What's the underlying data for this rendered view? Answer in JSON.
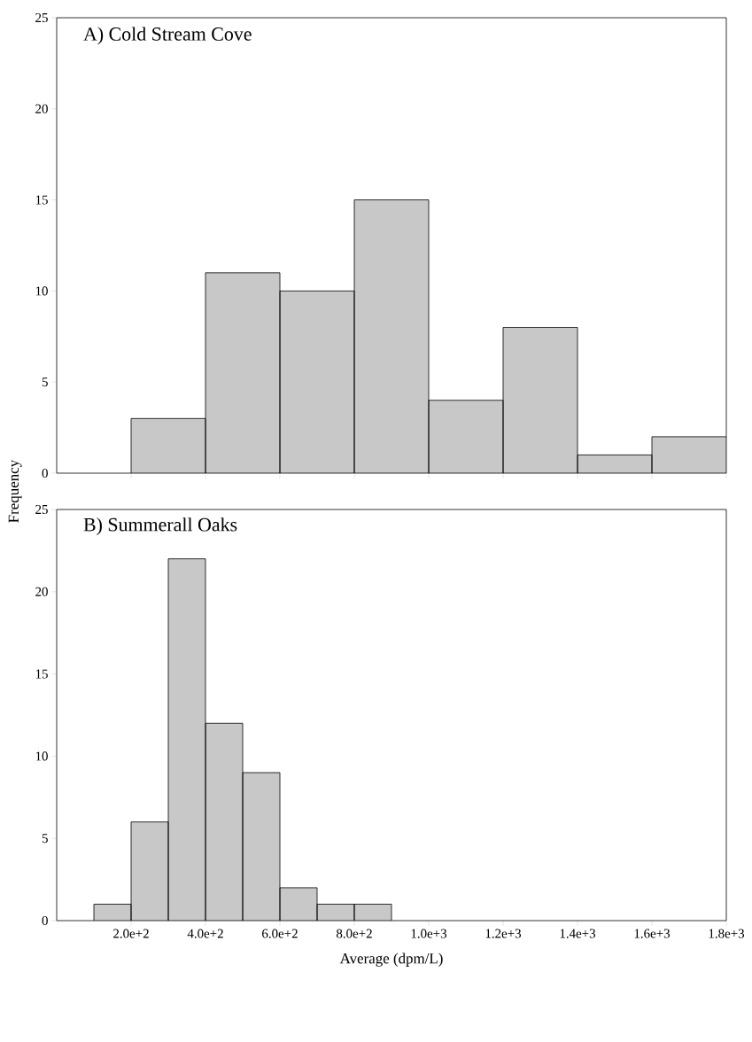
{
  "chart_data": [
    {
      "type": "histogram",
      "title": "A) Cold Stream Cove",
      "ylabel": "Frequency",
      "bins": [
        200,
        400,
        600,
        800,
        1000,
        1200,
        1400,
        1600,
        1800
      ],
      "values": [
        3,
        11,
        10,
        15,
        4,
        8,
        1,
        2
      ],
      "color": "#c8c8c8",
      "xlim": [
        0,
        1800
      ],
      "ylim": [
        0,
        25
      ],
      "xticks": [
        {
          "value": 200,
          "label": null
        },
        {
          "value": 400,
          "label": null
        },
        {
          "value": 600,
          "label": null
        },
        {
          "value": 800,
          "label": null
        },
        {
          "value": 1000,
          "label": null
        },
        {
          "value": 1200,
          "label": null
        },
        {
          "value": 1400,
          "label": null
        },
        {
          "value": 1600,
          "label": null
        },
        {
          "value": 1800,
          "label": null
        }
      ],
      "yticks": [
        0,
        5,
        10,
        15,
        20,
        25
      ],
      "tick_labels": "y"
    },
    {
      "type": "histogram",
      "title": "B) Summerall Oaks",
      "xlabel": "Average (dpm/L)",
      "bins": [
        100,
        200,
        300,
        400,
        500,
        600,
        700,
        800,
        900
      ],
      "values": [
        1,
        6,
        22,
        12,
        9,
        2,
        1,
        1
      ],
      "color": "#c8c8c8",
      "xlim": [
        0,
        1800
      ],
      "ylim": [
        0,
        25
      ],
      "xticks": [
        {
          "value": 200,
          "label": "2.0e+2"
        },
        {
          "value": 400,
          "label": "4.0e+2"
        },
        {
          "value": 600,
          "label": "6.0e+2"
        },
        {
          "value": 800,
          "label": "8.0e+2"
        },
        {
          "value": 1000,
          "label": "1.0e+3"
        },
        {
          "value": 1200,
          "label": "1.2e+3"
        },
        {
          "value": 1400,
          "label": "1.4e+3"
        },
        {
          "value": 1600,
          "label": "1.6e+3"
        },
        {
          "value": 1800,
          "label": "1.8e+3"
        }
      ],
      "yticks": [
        0,
        5,
        10,
        15,
        20,
        25
      ]
    }
  ]
}
